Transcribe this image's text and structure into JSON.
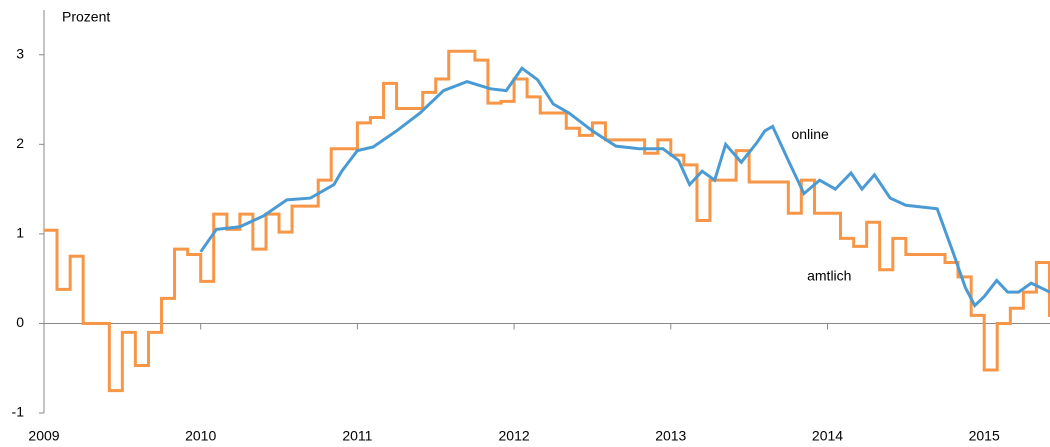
{
  "chart_data": {
    "type": "line",
    "y_label": "Prozent",
    "xlim": [
      2009,
      2015.42
    ],
    "xticks": [
      2009,
      2010,
      2011,
      2012,
      2013,
      2014,
      2015
    ],
    "ylim": [
      -1,
      3.5
    ],
    "yticks": [
      -1,
      0,
      1,
      2,
      3
    ],
    "series": [
      {
        "name": "amtlich",
        "color": "#f79646",
        "step": true,
        "x": [
          2009.0,
          2009.083,
          2009.167,
          2009.25,
          2009.333,
          2009.417,
          2009.5,
          2009.583,
          2009.667,
          2009.75,
          2009.833,
          2009.917,
          2010.0,
          2010.083,
          2010.167,
          2010.25,
          2010.333,
          2010.417,
          2010.5,
          2010.583,
          2010.667,
          2010.75,
          2010.833,
          2010.917,
          2011.0,
          2011.083,
          2011.167,
          2011.25,
          2011.333,
          2011.417,
          2011.5,
          2011.583,
          2011.667,
          2011.75,
          2011.833,
          2011.917,
          2012.0,
          2012.083,
          2012.167,
          2012.25,
          2012.333,
          2012.417,
          2012.5,
          2012.583,
          2012.667,
          2012.75,
          2012.833,
          2012.917,
          2013.0,
          2013.083,
          2013.167,
          2013.25,
          2013.333,
          2013.417,
          2013.5,
          2013.583,
          2013.667,
          2013.75,
          2013.833,
          2013.917,
          2014.0,
          2014.083,
          2014.167,
          2014.25,
          2014.333,
          2014.417,
          2014.5,
          2014.583,
          2014.667,
          2014.75,
          2014.833,
          2014.917,
          2015.0,
          2015.083,
          2015.167,
          2015.25,
          2015.333,
          2015.417
        ],
        "values": [
          1.04,
          0.38,
          0.75,
          0,
          0,
          -0.75,
          -0.1,
          -0.47,
          -0.1,
          0.28,
          0.83,
          0.77,
          0.47,
          1.22,
          1.05,
          1.22,
          0.83,
          1.22,
          1.02,
          1.31,
          1.31,
          1.6,
          1.95,
          1.95,
          2.24,
          2.3,
          2.68,
          2.4,
          2.4,
          2.58,
          2.73,
          3.04,
          3.04,
          2.94,
          2.46,
          2.48,
          2.73,
          2.53,
          2.35,
          2.35,
          2.18,
          2.1,
          2.24,
          2.05,
          2.05,
          2.05,
          1.9,
          2.05,
          1.88,
          1.77,
          1.15,
          1.6,
          1.6,
          1.93,
          1.58,
          1.58,
          1.58,
          1.23,
          1.6,
          1.23,
          1.23,
          0.95,
          0.86,
          1.13,
          0.6,
          0.95,
          0.77,
          0.77,
          0.77,
          0.68,
          0.52,
          0.09,
          -0.52,
          0,
          0.17,
          0.35,
          0.68,
          0.09
        ]
      },
      {
        "name": "online",
        "color": "#4a9bd4",
        "step": false,
        "x": [
          2010.0,
          2010.1,
          2010.25,
          2010.4,
          2010.55,
          2010.7,
          2010.85,
          2010.9,
          2011.0,
          2011.1,
          2011.25,
          2011.4,
          2011.55,
          2011.7,
          2011.85,
          2011.95,
          2012.05,
          2012.15,
          2012.25,
          2012.35,
          2012.5,
          2012.65,
          2012.8,
          2012.95,
          2013.05,
          2013.12,
          2013.2,
          2013.28,
          2013.35,
          2013.45,
          2013.55,
          2013.6,
          2013.65,
          2013.75,
          2013.85,
          2013.95,
          2014.05,
          2014.15,
          2014.22,
          2014.3,
          2014.4,
          2014.5,
          2014.6,
          2014.7,
          2014.8,
          2014.88,
          2014.94,
          2015.0,
          2015.08,
          2015.15,
          2015.22,
          2015.3,
          2015.42
        ],
        "values": [
          0.8,
          1.05,
          1.08,
          1.2,
          1.38,
          1.4,
          1.55,
          1.7,
          1.93,
          1.97,
          2.15,
          2.35,
          2.6,
          2.7,
          2.62,
          2.6,
          2.85,
          2.72,
          2.45,
          2.35,
          2.15,
          1.98,
          1.95,
          1.95,
          1.82,
          1.55,
          1.7,
          1.6,
          2.0,
          1.8,
          2.02,
          2.15,
          2.2,
          1.82,
          1.45,
          1.6,
          1.5,
          1.68,
          1.5,
          1.66,
          1.4,
          1.32,
          1.3,
          1.28,
          0.8,
          0.4,
          0.2,
          0.3,
          0.48,
          0.35,
          0.35,
          0.45,
          0.35
        ]
      }
    ],
    "annotations": [
      {
        "text": "online",
        "x": 2013.77,
        "y": 2.1
      },
      {
        "text": "amtlich",
        "x": 2013.87,
        "y": 0.52
      }
    ]
  }
}
